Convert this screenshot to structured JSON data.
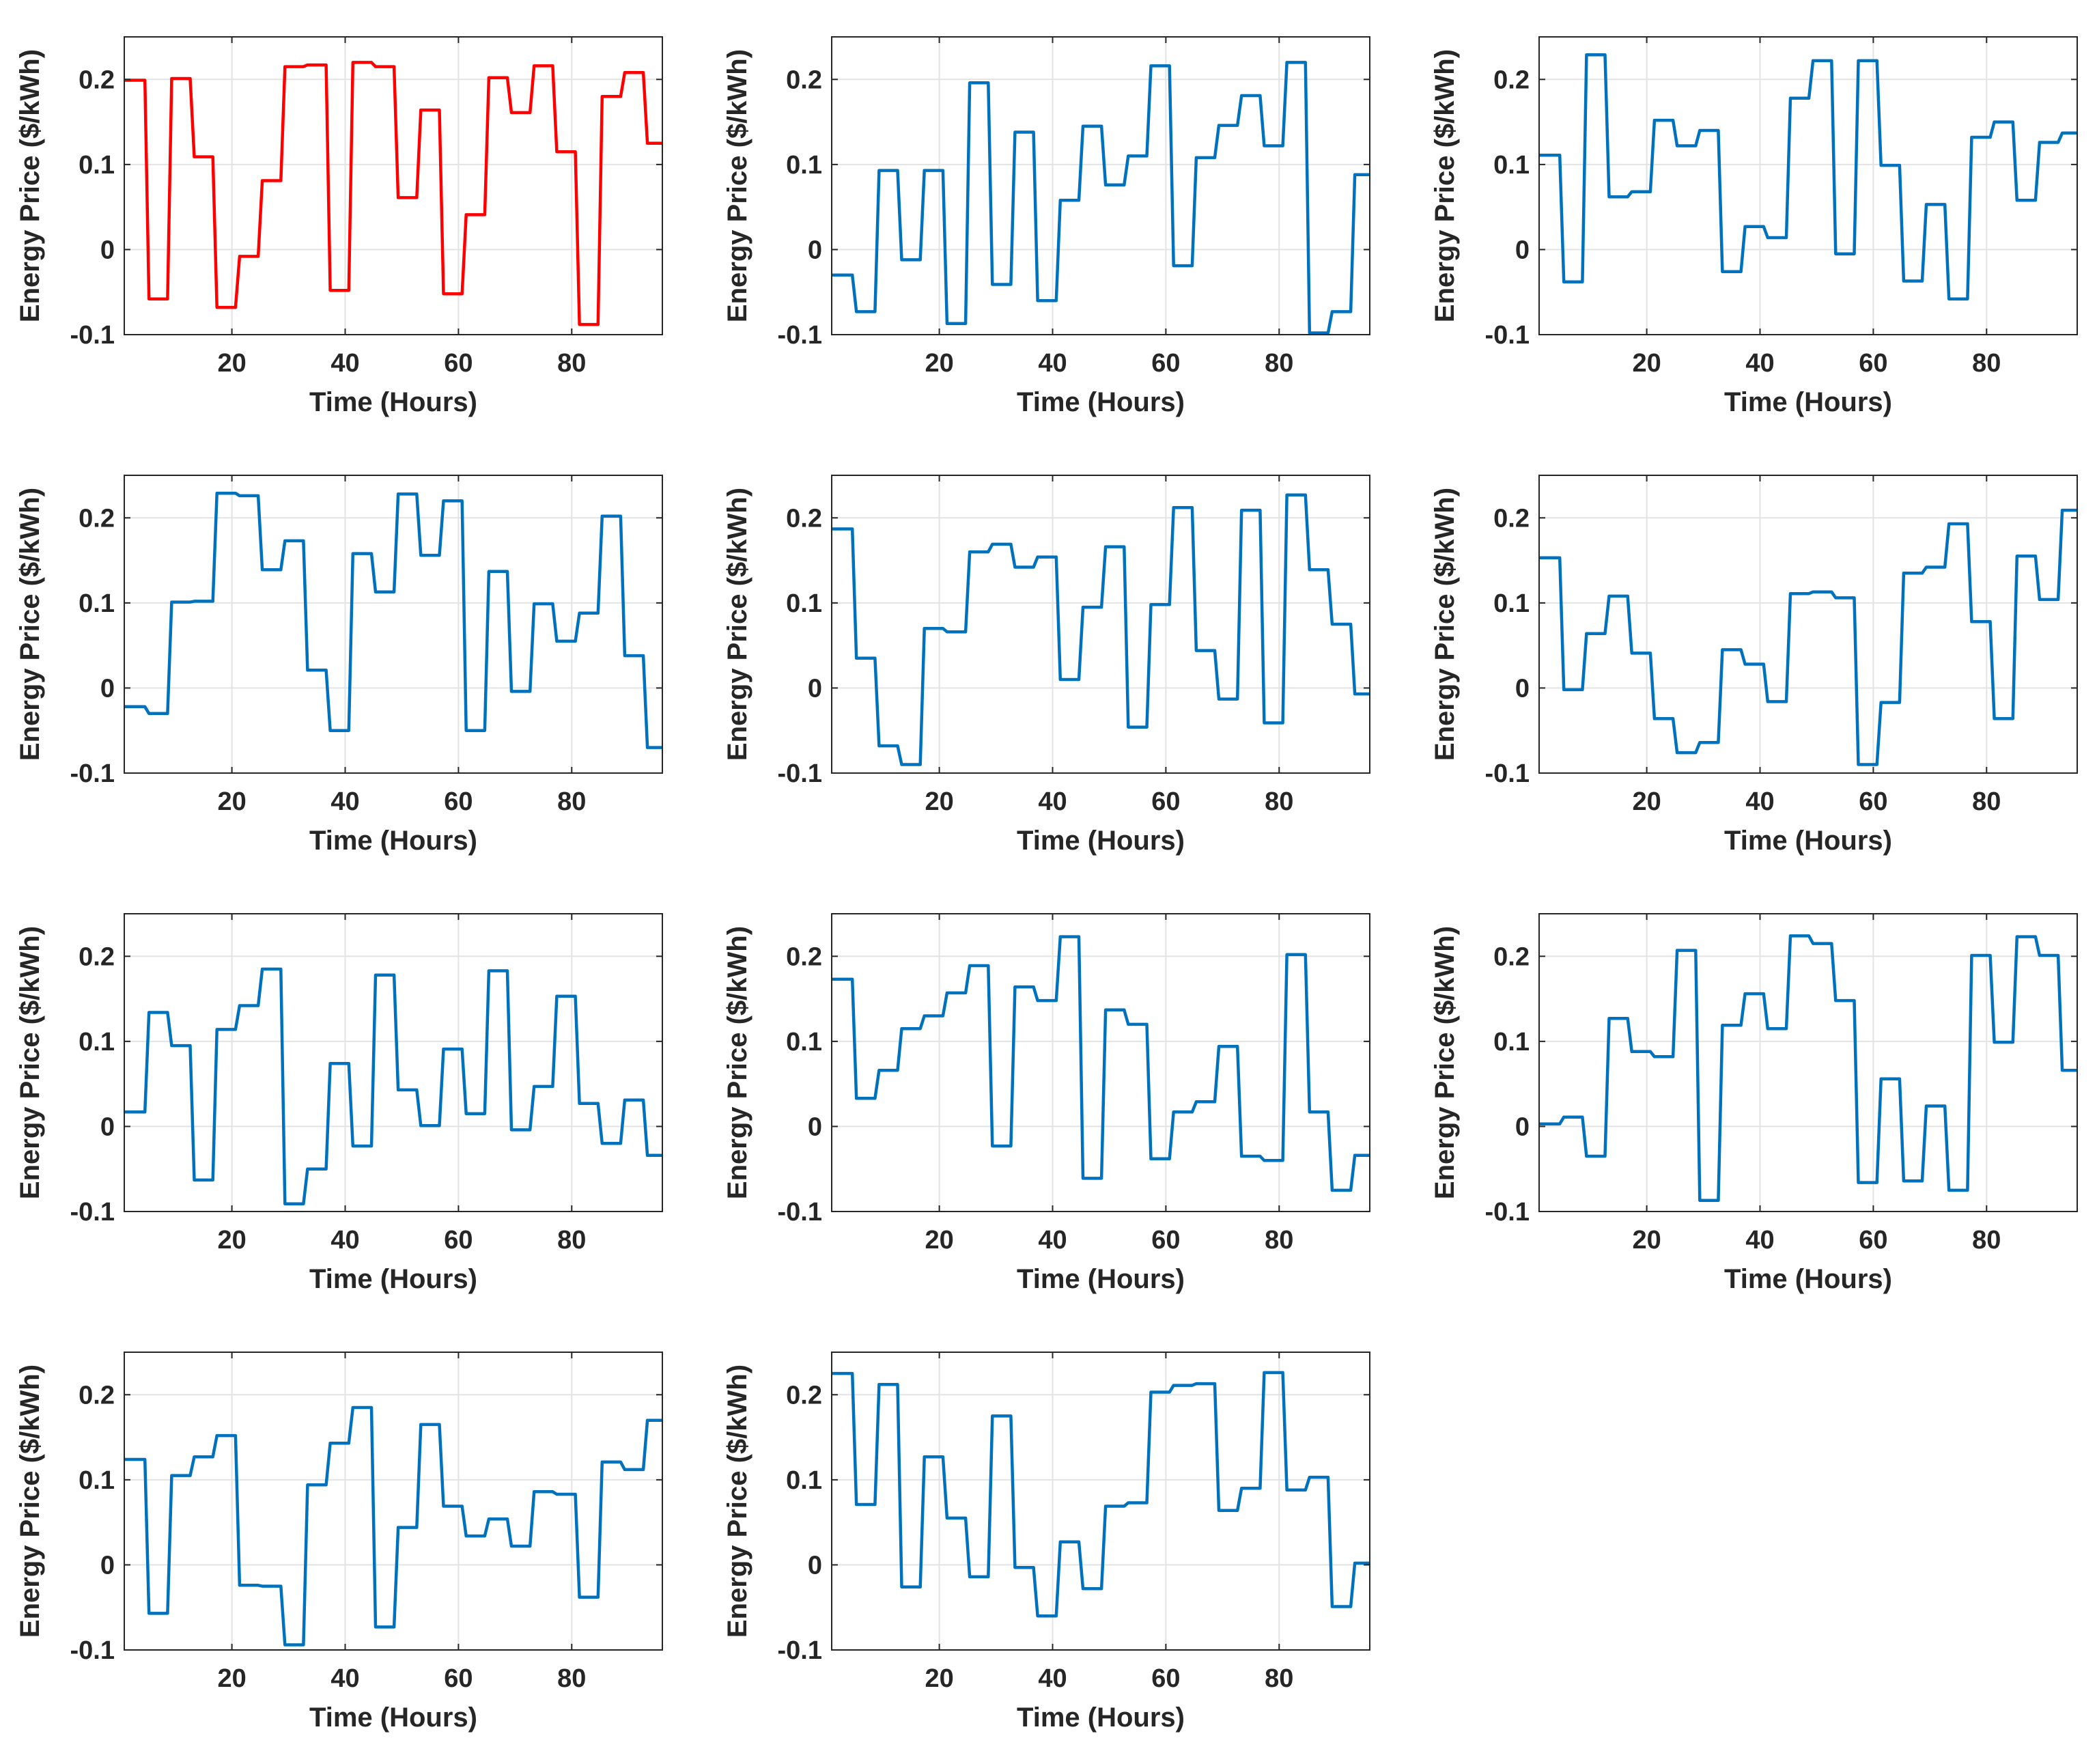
{
  "chart_data": [
    {
      "type": "line",
      "color": "#ff0000",
      "xlabel": "Time (Hours)",
      "ylabel": "Energy Price ($/kWh)",
      "xlim": [
        1,
        96
      ],
      "ylim": [
        -0.1,
        0.25
      ],
      "xticks": [
        20,
        40,
        60,
        80
      ],
      "yticks": [
        -0.1,
        0,
        0.1,
        0.2
      ],
      "grid": true,
      "step_width": 4,
      "values": [
        0.199,
        -0.058,
        0.201,
        0.109,
        -0.068,
        -0.008,
        0.081,
        0.215,
        0.217,
        -0.048,
        0.22,
        0.215,
        0.061,
        0.164,
        -0.052,
        0.041,
        0.202,
        0.161,
        0.216,
        0.115,
        -0.088,
        0.18,
        0.208,
        0.125
      ]
    },
    {
      "type": "line",
      "color": "#0072bd",
      "xlabel": "Time (Hours)",
      "ylabel": "Energy Price ($/kWh)",
      "xlim": [
        1,
        96
      ],
      "ylim": [
        -0.1,
        0.25
      ],
      "xticks": [
        20,
        40,
        60,
        80
      ],
      "yticks": [
        -0.1,
        0,
        0.1,
        0.2
      ],
      "grid": true,
      "step_width": 4,
      "values": [
        -0.03,
        -0.073,
        0.093,
        -0.012,
        0.093,
        -0.087,
        0.196,
        -0.041,
        0.138,
        -0.06,
        0.058,
        0.145,
        0.076,
        0.11,
        0.216,
        -0.019,
        0.108,
        0.146,
        0.181,
        0.122,
        0.22,
        -0.098,
        -0.073,
        0.088
      ]
    },
    {
      "type": "line",
      "color": "#0072bd",
      "xlabel": "Time (Hours)",
      "ylabel": "Energy Price ($/kWh)",
      "xlim": [
        1,
        96
      ],
      "ylim": [
        -0.1,
        0.25
      ],
      "xticks": [
        20,
        40,
        60,
        80
      ],
      "yticks": [
        -0.1,
        0,
        0.1,
        0.2
      ],
      "grid": true,
      "step_width": 4,
      "values": [
        0.111,
        -0.038,
        0.229,
        0.062,
        0.068,
        0.152,
        0.122,
        0.14,
        -0.026,
        0.027,
        0.014,
        0.178,
        0.222,
        -0.005,
        0.222,
        0.099,
        -0.037,
        0.053,
        -0.058,
        0.132,
        0.15,
        0.058,
        0.126,
        0.137
      ]
    },
    {
      "type": "line",
      "color": "#0072bd",
      "xlabel": "Time (Hours)",
      "ylabel": "Energy Price ($/kWh)",
      "xlim": [
        1,
        96
      ],
      "ylim": [
        -0.1,
        0.25
      ],
      "xticks": [
        20,
        40,
        60,
        80
      ],
      "yticks": [
        -0.1,
        0,
        0.1,
        0.2
      ],
      "grid": true,
      "step_width": 4,
      "values": [
        -0.022,
        -0.03,
        0.101,
        0.102,
        0.229,
        0.226,
        0.139,
        0.173,
        0.021,
        -0.05,
        0.158,
        0.113,
        0.228,
        0.156,
        0.22,
        -0.05,
        0.137,
        -0.004,
        0.099,
        0.055,
        0.088,
        0.202,
        0.038,
        -0.07
      ]
    },
    {
      "type": "line",
      "color": "#0072bd",
      "xlabel": "Time (Hours)",
      "ylabel": "Energy Price ($/kWh)",
      "xlim": [
        1,
        96
      ],
      "ylim": [
        -0.1,
        0.25
      ],
      "xticks": [
        20,
        40,
        60,
        80
      ],
      "yticks": [
        -0.1,
        0,
        0.1,
        0.2
      ],
      "grid": true,
      "step_width": 4,
      "values": [
        0.187,
        0.035,
        -0.068,
        -0.09,
        0.07,
        0.066,
        0.16,
        0.169,
        0.142,
        0.154,
        0.01,
        0.095,
        0.166,
        -0.046,
        0.098,
        0.212,
        0.044,
        -0.013,
        0.209,
        -0.041,
        0.227,
        0.139,
        0.075,
        -0.007
      ]
    },
    {
      "type": "line",
      "color": "#0072bd",
      "xlabel": "Time (Hours)",
      "ylabel": "Energy Price ($/kWh)",
      "xlim": [
        1,
        96
      ],
      "ylim": [
        -0.1,
        0.25
      ],
      "xticks": [
        20,
        40,
        60,
        80
      ],
      "yticks": [
        -0.1,
        0,
        0.1,
        0.2
      ],
      "grid": true,
      "step_width": 4,
      "values": [
        0.153,
        -0.002,
        0.064,
        0.108,
        0.041,
        -0.036,
        -0.076,
        -0.064,
        0.045,
        0.028,
        -0.016,
        0.111,
        0.113,
        0.106,
        -0.09,
        -0.017,
        0.135,
        0.142,
        0.193,
        0.078,
        -0.036,
        0.155,
        0.104,
        0.209
      ]
    },
    {
      "type": "line",
      "color": "#0072bd",
      "xlabel": "Time (Hours)",
      "ylabel": "Energy Price ($/kWh)",
      "xlim": [
        1,
        96
      ],
      "ylim": [
        -0.1,
        0.25
      ],
      "xticks": [
        20,
        40,
        60,
        80
      ],
      "yticks": [
        -0.1,
        0,
        0.1,
        0.2
      ],
      "grid": true,
      "step_width": 4,
      "values": [
        0.017,
        0.134,
        0.095,
        -0.063,
        0.114,
        0.142,
        0.185,
        -0.091,
        -0.05,
        0.074,
        -0.023,
        0.178,
        0.043,
        0.001,
        0.091,
        0.015,
        0.183,
        -0.004,
        0.047,
        0.153,
        0.027,
        -0.02,
        0.031,
        -0.034
      ]
    },
    {
      "type": "line",
      "color": "#0072bd",
      "xlabel": "Time (Hours)",
      "ylabel": "Energy Price ($/kWh)",
      "xlim": [
        1,
        96
      ],
      "ylim": [
        -0.1,
        0.25
      ],
      "xticks": [
        20,
        40,
        60,
        80
      ],
      "yticks": [
        -0.1,
        0,
        0.1,
        0.2
      ],
      "grid": true,
      "step_width": 4,
      "values": [
        0.173,
        0.033,
        0.066,
        0.115,
        0.13,
        0.157,
        0.189,
        -0.023,
        0.164,
        0.148,
        0.223,
        -0.061,
        0.137,
        0.12,
        -0.038,
        0.017,
        0.029,
        0.094,
        -0.035,
        -0.04,
        0.202,
        0.017,
        -0.075,
        -0.034
      ]
    },
    {
      "type": "line",
      "color": "#0072bd",
      "xlabel": "Time (Hours)",
      "ylabel": "Energy Price ($/kWh)",
      "xlim": [
        1,
        96
      ],
      "ylim": [
        -0.1,
        0.25
      ],
      "xticks": [
        20,
        40,
        60,
        80
      ],
      "yticks": [
        -0.1,
        0,
        0.1,
        0.2
      ],
      "grid": true,
      "step_width": 4,
      "values": [
        0.003,
        0.011,
        -0.035,
        0.127,
        0.088,
        0.082,
        0.207,
        -0.087,
        0.119,
        0.156,
        0.115,
        0.224,
        0.215,
        0.148,
        -0.066,
        0.056,
        -0.064,
        0.024,
        -0.075,
        0.201,
        0.099,
        0.223,
        0.201,
        0.066
      ]
    },
    {
      "type": "line",
      "color": "#0072bd",
      "xlabel": "Time (Hours)",
      "ylabel": "Energy Price ($/kWh)",
      "xlim": [
        1,
        96
      ],
      "ylim": [
        -0.1,
        0.25
      ],
      "xticks": [
        20,
        40,
        60,
        80
      ],
      "yticks": [
        -0.1,
        0,
        0.1,
        0.2
      ],
      "grid": true,
      "step_width": 4,
      "values": [
        0.124,
        -0.057,
        0.105,
        0.127,
        0.152,
        -0.024,
        -0.025,
        -0.094,
        0.094,
        0.143,
        0.185,
        -0.073,
        0.044,
        0.165,
        0.069,
        0.034,
        0.054,
        0.022,
        0.086,
        0.083,
        -0.038,
        0.121,
        0.112,
        0.17
      ]
    },
    {
      "type": "line",
      "color": "#0072bd",
      "xlabel": "Time (Hours)",
      "ylabel": "Energy Price ($/kWh)",
      "xlim": [
        1,
        96
      ],
      "ylim": [
        -0.1,
        0.25
      ],
      "xticks": [
        20,
        40,
        60,
        80
      ],
      "yticks": [
        -0.1,
        0,
        0.1,
        0.2
      ],
      "grid": true,
      "step_width": 4,
      "values": [
        0.225,
        0.071,
        0.212,
        -0.026,
        0.127,
        0.055,
        -0.014,
        0.175,
        -0.003,
        -0.06,
        0.027,
        -0.028,
        0.069,
        0.073,
        0.203,
        0.211,
        0.213,
        0.064,
        0.09,
        0.226,
        0.088,
        0.103,
        -0.049,
        0.002
      ]
    }
  ]
}
